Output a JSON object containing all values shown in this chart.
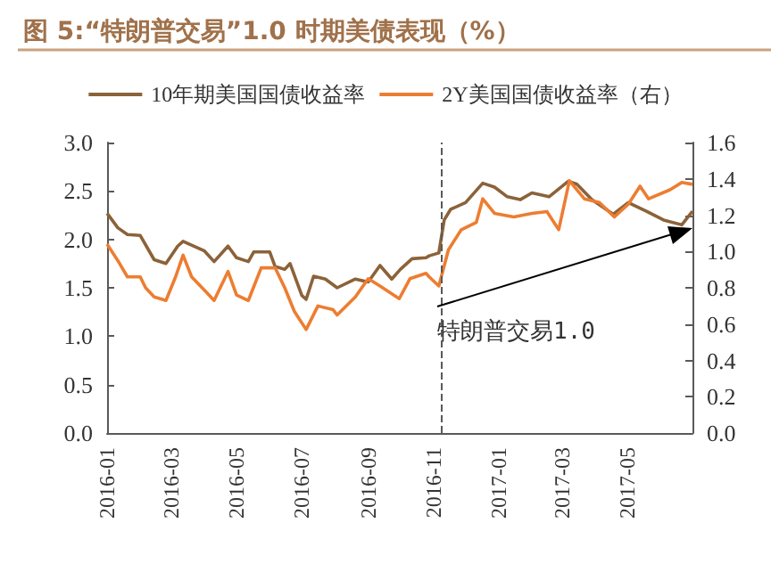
{
  "chart_data": {
    "type": "line",
    "title": "图 5:“特朗普交易”1.0 时期美债表现（%）",
    "legend": "top",
    "grid": false,
    "x": [
      "2016-01-01",
      "2016-01-11",
      "2016-01-20",
      "2016-02-01",
      "2016-02-14",
      "2016-02-25",
      "2016-03-07",
      "2016-03-12",
      "2016-04-01",
      "2016-04-10",
      "2016-04-23",
      "2016-05-01",
      "2016-05-12",
      "2016-05-17",
      "2016-06-01",
      "2016-06-06",
      "2016-06-15",
      "2016-06-20",
      "2016-07-01",
      "2016-07-05",
      "2016-07-12",
      "2016-07-23",
      "2016-08-03",
      "2016-08-20",
      "2016-09-01",
      "2016-09-12",
      "2016-09-23",
      "2016-10-01",
      "2016-10-12",
      "2016-10-25",
      "2016-10-28",
      "2016-11-06",
      "2016-11-11",
      "2016-11-17",
      "2016-12-01",
      "2016-12-17",
      "2016-12-28",
      "2017-01-09",
      "2017-01-21",
      "2017-02-01",
      "2017-02-17",
      "2017-03-07",
      "2017-03-15",
      "2017-03-29",
      "2017-04-18",
      "2017-05-02",
      "2017-05-19",
      "2017-06-04",
      "2017-06-21",
      "2017-07-01"
    ],
    "series": [
      {
        "name": "10年期美国国债收益率",
        "color": "#8c6239",
        "values": [
          2.27,
          2.12,
          2.05,
          2.04,
          1.79,
          1.75,
          1.93,
          1.98,
          1.88,
          1.77,
          1.93,
          1.81,
          1.77,
          1.87,
          1.87,
          1.72,
          1.69,
          1.75,
          1.42,
          1.38,
          1.62,
          1.59,
          1.5,
          1.59,
          1.56,
          1.73,
          1.59,
          1.69,
          1.8,
          1.81,
          1.83,
          1.86,
          2.2,
          2.31,
          2.38,
          2.58,
          2.54,
          2.44,
          2.41,
          2.48,
          2.44,
          2.6,
          2.57,
          2.41,
          2.26,
          2.38,
          2.29,
          2.2,
          2.15,
          2.29
        ]
      },
      {
        "name": "2Y美国国债收益率（右）",
        "color": "#ed7d31",
        "axis": "y2",
        "x": [
          "2016-01-01",
          "2016-01-11",
          "2016-01-20",
          "2016-02-01",
          "2016-02-06",
          "2016-02-14",
          "2016-02-25",
          "2016-03-05",
          "2016-03-12",
          "2016-03-20",
          "2016-04-02",
          "2016-04-10",
          "2016-04-23",
          "2016-05-01",
          "2016-05-12",
          "2016-05-24",
          "2016-06-06",
          "2016-06-15",
          "2016-06-24",
          "2016-07-05",
          "2016-07-16",
          "2016-07-30",
          "2016-08-03",
          "2016-08-20",
          "2016-09-01",
          "2016-09-12",
          "2016-09-30",
          "2016-10-10",
          "2016-10-25",
          "2016-10-28",
          "2016-11-06",
          "2016-11-15",
          "2016-11-27",
          "2016-12-11",
          "2016-12-17",
          "2016-12-28",
          "2017-01-15",
          "2017-02-01",
          "2017-02-15",
          "2017-02-26",
          "2017-03-08",
          "2017-03-22",
          "2017-04-05",
          "2017-04-19",
          "2017-05-02",
          "2017-05-13",
          "2017-05-21",
          "2017-06-10",
          "2017-06-21",
          "2017-07-01"
        ],
        "values": [
          1.04,
          0.95,
          0.86,
          0.86,
          0.8,
          0.75,
          0.73,
          0.86,
          0.98,
          0.86,
          0.78,
          0.73,
          0.89,
          0.76,
          0.73,
          0.91,
          0.91,
          0.8,
          0.67,
          0.57,
          0.7,
          0.68,
          0.65,
          0.75,
          0.85,
          0.81,
          0.74,
          0.85,
          0.88,
          0.86,
          0.81,
          1.01,
          1.12,
          1.16,
          1.29,
          1.21,
          1.19,
          1.21,
          1.22,
          1.12,
          1.39,
          1.29,
          1.27,
          1.19,
          1.26,
          1.36,
          1.29,
          1.34,
          1.38,
          1.37
        ]
      }
    ],
    "xlim": [
      "2016-01-01",
      "2017-07-01"
    ],
    "xticks": [
      "2016-01",
      "2016-03",
      "2016-05",
      "2016-07",
      "2016-09",
      "2016-11",
      "2017-01",
      "2017-03",
      "2017-05"
    ],
    "ylim": [
      0,
      3
    ],
    "yticks": [
      {
        "value": 0,
        "label": "0.0"
      },
      {
        "value": 0.5,
        "label": "0.5"
      },
      {
        "value": 1,
        "label": "1.0"
      },
      {
        "value": 1.5,
        "label": "1.5"
      },
      {
        "value": 2,
        "label": "2.0"
      },
      {
        "value": 2.5,
        "label": "2.5"
      },
      {
        "value": 3,
        "label": "3.0"
      }
    ],
    "y2lim": [
      0,
      1.6
    ],
    "y2ticks": [
      {
        "value": 0,
        "label": "0.0"
      },
      {
        "value": 0.2,
        "label": "0.2"
      },
      {
        "value": 0.4,
        "label": "0.4"
      },
      {
        "value": 0.6,
        "label": "0.6"
      },
      {
        "value": 0.8,
        "label": "0.8"
      },
      {
        "value": 1,
        "label": "1.0"
      },
      {
        "value": 1.2,
        "label": "1.2"
      },
      {
        "value": 1.4,
        "label": "1.4"
      },
      {
        "value": 1.6,
        "label": "1.6"
      }
    ],
    "ref_lines": [
      {
        "axis": "x",
        "value": "2016-11-08",
        "color": "#595959",
        "line_style": "dashed"
      }
    ],
    "annotations": [
      "特朗普交易1.0"
    ]
  }
}
